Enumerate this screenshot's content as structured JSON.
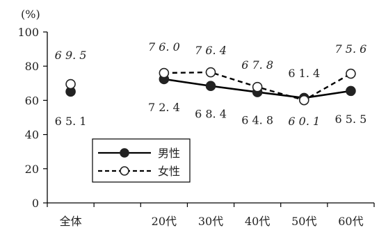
{
  "chart_data": {
    "type": "line",
    "unit_label": "(%)",
    "ylim": [
      0,
      100
    ],
    "yticks": [
      0,
      20,
      40,
      60,
      80,
      100
    ],
    "categories": [
      "全体",
      "",
      "20代",
      "30代",
      "40代",
      "50代",
      "60代"
    ],
    "grid": false,
    "legend_position": "bottom-left",
    "series": [
      {
        "name": "男性",
        "style": "solid",
        "marker": "filled-circle",
        "color": "#000000",
        "values": [
          65.1,
          null,
          72.4,
          68.4,
          64.8,
          61.4,
          65.5
        ],
        "labels": [
          "65.1",
          "",
          "72.4",
          "68.4",
          "64.8",
          "61.4",
          "65.5"
        ]
      },
      {
        "name": "女性",
        "style": "dashed",
        "marker": "open-circle",
        "color": "#000000",
        "values": [
          69.5,
          null,
          76.0,
          76.4,
          67.8,
          60.1,
          75.6
        ],
        "labels": [
          "69.5",
          "",
          "76.0",
          "76.4",
          "67.8",
          "60.1",
          "75.6"
        ]
      }
    ]
  }
}
